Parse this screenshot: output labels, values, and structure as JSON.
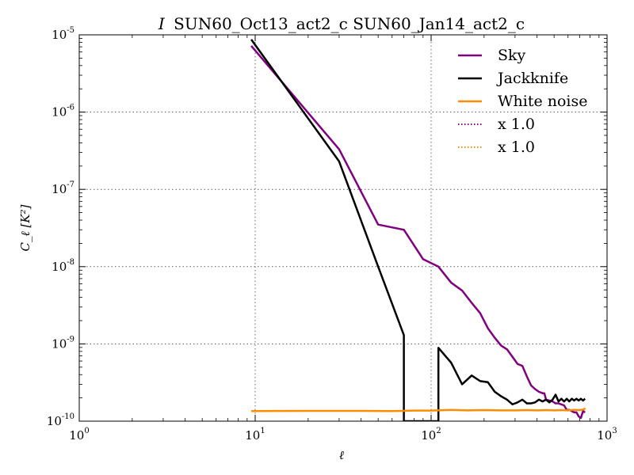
{
  "chart_data": {
    "type": "line",
    "title": "SUN60_Oct13_act2_c SUN60_Jan14_act2_c",
    "title_prefix": "I",
    "xlabel": "ℓ",
    "ylabel": "C_ℓ [K²]",
    "xscale": "log",
    "yscale": "log",
    "xlim": [
      1,
      1000
    ],
    "ylim": [
      1e-10,
      1e-05
    ],
    "grid": true,
    "grid_style": "dotted",
    "legend_position": "top-right",
    "x_ticks": [
      {
        "value": 1,
        "base": "10",
        "exp": "0"
      },
      {
        "value": 10,
        "base": "10",
        "exp": "1"
      },
      {
        "value": 100,
        "base": "10",
        "exp": "2"
      },
      {
        "value": 1000,
        "base": "10",
        "exp": "3"
      }
    ],
    "y_ticks": [
      {
        "value": 1e-10,
        "base": "10",
        "exp": "-10"
      },
      {
        "value": 1e-09,
        "base": "10",
        "exp": "-9"
      },
      {
        "value": 1e-08,
        "base": "10",
        "exp": "-8"
      },
      {
        "value": 1e-07,
        "base": "10",
        "exp": "-7"
      },
      {
        "value": 1e-06,
        "base": "10",
        "exp": "-6"
      },
      {
        "value": 1e-05,
        "base": "10",
        "exp": "-5"
      }
    ],
    "series": [
      {
        "name": "Sky",
        "color": "#800080",
        "style": "solid",
        "points": [
          [
            9.5,
            7.2e-06
          ],
          [
            30,
            3.3e-07
          ],
          [
            50,
            3.5e-08
          ],
          [
            70,
            3e-08
          ],
          [
            90,
            1.25e-08
          ],
          [
            110,
            1e-08
          ],
          [
            130,
            6.2e-09
          ],
          [
            150,
            4.9e-09
          ],
          [
            170,
            3.4e-09
          ],
          [
            190,
            2.5e-09
          ],
          [
            210,
            1.6e-09
          ],
          [
            230,
            1.2e-09
          ],
          [
            250,
            9.5e-10
          ],
          [
            270,
            8.5e-10
          ],
          [
            290,
            6.8e-10
          ],
          [
            310,
            5.5e-10
          ],
          [
            330,
            5.2e-10
          ],
          [
            350,
            3.8e-10
          ],
          [
            370,
            2.9e-10
          ],
          [
            390,
            2.6e-10
          ],
          [
            410,
            2.4e-10
          ],
          [
            430,
            2.3e-10
          ],
          [
            440,
            2.3e-10
          ],
          [
            450,
            1.9e-10
          ],
          [
            470,
            1.85e-10
          ],
          [
            490,
            1.8e-10
          ],
          [
            510,
            1.7e-10
          ],
          [
            530,
            1.7e-10
          ],
          [
            550,
            1.65e-10
          ],
          [
            570,
            1.6e-10
          ],
          [
            590,
            1.4e-10
          ],
          [
            610,
            1.4e-10
          ],
          [
            630,
            1.35e-10
          ],
          [
            650,
            1.3e-10
          ],
          [
            670,
            1.3e-10
          ],
          [
            690,
            1.15e-10
          ],
          [
            710,
            1.1e-10
          ],
          [
            730,
            1.35e-10
          ],
          [
            750,
            1.3e-10
          ]
        ]
      },
      {
        "name": "Jackknife",
        "color": "#000000",
        "style": "solid",
        "points": [
          [
            9.5,
            8.7e-06
          ],
          [
            30,
            2.3e-07
          ],
          [
            50,
            1e-08
          ],
          [
            70,
            1.3e-09
          ],
          [
            70,
            1e-10
          ],
          [
            110,
            1e-10
          ],
          [
            110,
            8.9e-10
          ],
          [
            130,
            5.7e-10
          ],
          [
            150,
            3e-10
          ],
          [
            170,
            3.9e-10
          ],
          [
            190,
            3.3e-10
          ],
          [
            210,
            3.2e-10
          ],
          [
            230,
            2.4e-10
          ],
          [
            250,
            2.1e-10
          ],
          [
            270,
            1.9e-10
          ],
          [
            290,
            1.65e-10
          ],
          [
            310,
            1.75e-10
          ],
          [
            330,
            1.9e-10
          ],
          [
            350,
            1.7e-10
          ],
          [
            370,
            1.7e-10
          ],
          [
            390,
            1.75e-10
          ],
          [
            410,
            1.9e-10
          ],
          [
            430,
            1.8e-10
          ],
          [
            450,
            1.9e-10
          ],
          [
            470,
            1.75e-10
          ],
          [
            490,
            1.9e-10
          ],
          [
            510,
            2.2e-10
          ],
          [
            530,
            1.8e-10
          ],
          [
            550,
            1.95e-10
          ],
          [
            570,
            1.8e-10
          ],
          [
            590,
            1.95e-10
          ],
          [
            610,
            1.8e-10
          ],
          [
            630,
            1.95e-10
          ],
          [
            650,
            1.85e-10
          ],
          [
            670,
            1.95e-10
          ],
          [
            690,
            1.85e-10
          ],
          [
            710,
            1.95e-10
          ],
          [
            730,
            1.85e-10
          ],
          [
            750,
            1.95e-10
          ]
        ]
      },
      {
        "name": "White noise",
        "color": "#ff8c00",
        "style": "solid",
        "points": [
          [
            9.5,
            1.35e-10
          ],
          [
            20,
            1.36e-10
          ],
          [
            40,
            1.36e-10
          ],
          [
            60,
            1.35e-10
          ],
          [
            80,
            1.37e-10
          ],
          [
            100,
            1.37e-10
          ],
          [
            130,
            1.4e-10
          ],
          [
            160,
            1.38e-10
          ],
          [
            200,
            1.39e-10
          ],
          [
            250,
            1.38e-10
          ],
          [
            300,
            1.38e-10
          ],
          [
            350,
            1.39e-10
          ],
          [
            400,
            1.38e-10
          ],
          [
            450,
            1.39e-10
          ],
          [
            500,
            1.38e-10
          ],
          [
            550,
            1.39e-10
          ],
          [
            600,
            1.38e-10
          ],
          [
            650,
            1.4e-10
          ],
          [
            700,
            1.39e-10
          ],
          [
            740,
            1.42e-10
          ],
          [
            750,
            1.48e-10
          ]
        ]
      }
    ],
    "legend": [
      {
        "label": "Sky",
        "color": "#800080",
        "style": "solid"
      },
      {
        "label": "Jackknife",
        "color": "#000000",
        "style": "solid"
      },
      {
        "label": "White noise",
        "color": "#ff8c00",
        "style": "solid"
      },
      {
        "label": "x 1.0",
        "color": "#800080",
        "style": "dotted"
      },
      {
        "label": "x 1.0",
        "color": "#ff8c00",
        "style": "dotted"
      }
    ]
  }
}
